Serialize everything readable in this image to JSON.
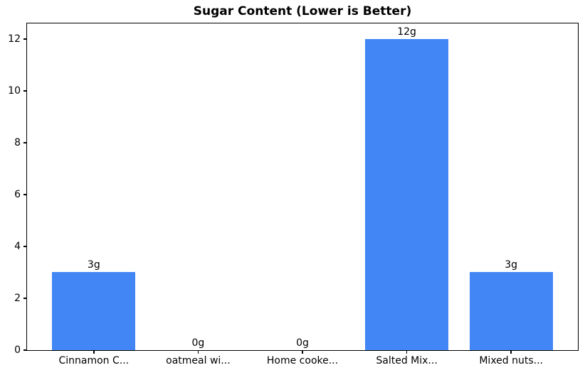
{
  "chart_data": {
    "type": "bar",
    "title": "Sugar Content (Lower is Better)",
    "categories": [
      "Cinnamon C...",
      "oatmeal wi...",
      "Home cooke...",
      "Salted Mix...",
      "Mixed nuts..."
    ],
    "values": [
      3,
      0,
      0,
      12,
      3
    ],
    "bar_labels": [
      "3g",
      "0g",
      "0g",
      "12g",
      "3g"
    ],
    "yticks": [
      0,
      2,
      4,
      6,
      8,
      10,
      12
    ],
    "ytick_labels": [
      "0",
      "2",
      "4",
      "6",
      "8",
      "10",
      "12"
    ],
    "ylim": [
      0,
      12.6
    ],
    "xlabel": "",
    "ylabel": "",
    "bar_color": "#4285f4",
    "grid": "off",
    "legend": "none"
  }
}
